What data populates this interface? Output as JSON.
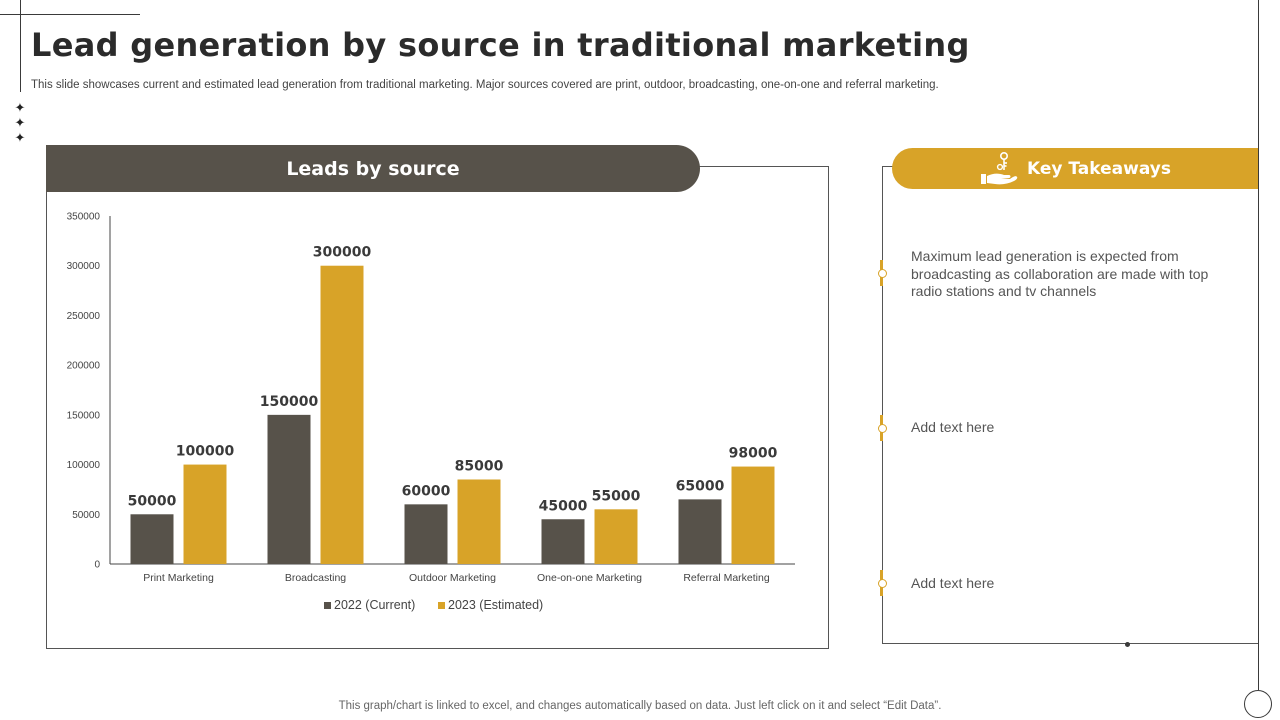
{
  "title": "Lead generation by source in traditional marketing",
  "subtitle": "This slide showcases current and estimated lead generation from traditional marketing. Major sources covered are print, outdoor, broadcasting, one-on-one and referral marketing.",
  "chart_header": "Leads by source",
  "key_takeaways": {
    "header": "Key Takeaways",
    "icon": "hand-key-icon",
    "items": [
      "Maximum lead generation is expected from broadcasting as collaboration are made with top radio stations and tv channels",
      "Add text here",
      "Add text here"
    ]
  },
  "footer_note": "This graph/chart is linked to excel,  and changes automatically based on data. Just left click on it and select “Edit Data”.",
  "colors": {
    "dark": "#57524a",
    "gold": "#d8a328"
  },
  "chart_data": {
    "type": "bar",
    "categories": [
      "Print Marketing",
      "Broadcasting",
      "Outdoor Marketing",
      "One-on-one Marketing",
      "Referral Marketing"
    ],
    "series": [
      {
        "name": "2022 (Current)",
        "values": [
          50000,
          150000,
          60000,
          45000,
          65000
        ],
        "color": "#57524a"
      },
      {
        "name": "2023 (Estimated)",
        "values": [
          100000,
          300000,
          85000,
          55000,
          98000
        ],
        "color": "#d8a328"
      }
    ],
    "ylim": [
      0,
      350000
    ],
    "yticks": [
      0,
      50000,
      100000,
      150000,
      200000,
      250000,
      300000,
      350000
    ],
    "grid": false,
    "legend": "bottom",
    "data_labels": true
  }
}
